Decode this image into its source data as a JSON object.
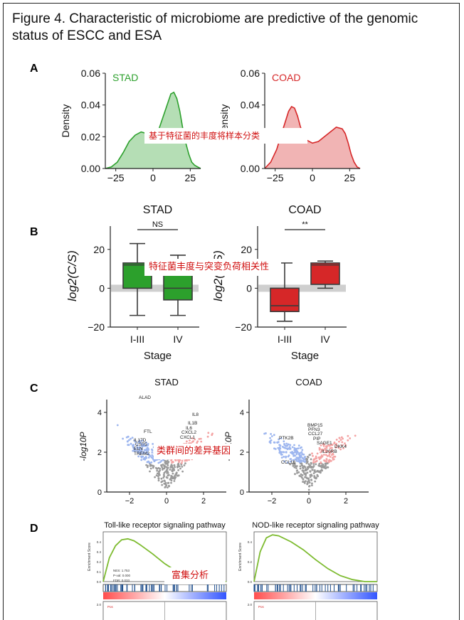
{
  "figure": {
    "title": "Figure 4.  Characteristic of microbiome are predictive of the genomic status of ESCC and ESA",
    "panel_letters": [
      "A",
      "B",
      "C",
      "D"
    ]
  },
  "overlays": {
    "A": "基于特征菌的丰度将样本分类",
    "B": "特征菌丰度与突变负荷相关性",
    "C": "类群间的差异基因",
    "D": "富集分析"
  },
  "colors": {
    "stad_green": "#2ca02c",
    "coad_red": "#d62728",
    "gsea_curve": "#7dbb2f",
    "volcano_up": "#f4a3a3",
    "volcano_down": "#9db6ef",
    "volcano_ns": "#9a9a9a"
  },
  "chart_data": [
    {
      "type": "area",
      "panel": "A",
      "title": "STAD",
      "ylabel": "Density",
      "x": [
        -32,
        -28,
        -24,
        -20,
        -16,
        -12,
        -8,
        -4,
        0,
        4,
        8,
        12,
        14,
        16,
        18,
        20,
        22,
        24,
        26,
        28,
        30,
        32
      ],
      "y": [
        0.0,
        0.001,
        0.004,
        0.01,
        0.017,
        0.021,
        0.023,
        0.022,
        0.021,
        0.025,
        0.036,
        0.047,
        0.048,
        0.044,
        0.036,
        0.025,
        0.016,
        0.009,
        0.004,
        0.002,
        0.001,
        0.0
      ],
      "xticks": [
        "-25",
        "0",
        "25"
      ],
      "yticks": [
        "0.00",
        "0.02",
        "0.04",
        "0.06"
      ],
      "xlim": [
        -32,
        32
      ],
      "ylim": [
        0,
        0.06
      ]
    },
    {
      "type": "area",
      "panel": "A",
      "title": "COAD",
      "ylabel": "Density",
      "x": [
        -32,
        -28,
        -24,
        -20,
        -16,
        -14,
        -12,
        -10,
        -8,
        -4,
        0,
        4,
        8,
        12,
        16,
        20,
        22,
        24,
        26,
        28,
        30,
        32
      ],
      "y": [
        0.0,
        0.004,
        0.012,
        0.024,
        0.036,
        0.039,
        0.038,
        0.033,
        0.026,
        0.018,
        0.016,
        0.017,
        0.02,
        0.023,
        0.026,
        0.025,
        0.022,
        0.016,
        0.009,
        0.004,
        0.001,
        0.0
      ],
      "xticks": [
        "-25",
        "0",
        "25"
      ],
      "yticks": [
        "0.00",
        "0.02",
        "0.04",
        "0.06"
      ],
      "xlim": [
        -32,
        32
      ],
      "ylim": [
        0,
        0.06
      ]
    },
    {
      "type": "box",
      "panel": "B",
      "title": "STAD",
      "xlabel": "Stage",
      "ylabel": "log2(C/S)",
      "significance": "NS",
      "categories": [
        "I-III",
        "IV"
      ],
      "boxes": [
        {
          "min": -14,
          "q1": 0,
          "median": 12,
          "q3": 13,
          "max": 23
        },
        {
          "min": -14,
          "q1": -6,
          "median": 0,
          "q3": 12,
          "max": 17
        }
      ],
      "yticks": [
        "20",
        "0",
        "-20"
      ],
      "ylim": [
        -20,
        32
      ]
    },
    {
      "type": "box",
      "panel": "B",
      "title": "COAD",
      "xlabel": "Stage",
      "ylabel": "log2(C/S)",
      "significance": "**",
      "categories": [
        "I-III",
        "IV"
      ],
      "boxes": [
        {
          "min": -17,
          "q1": -12,
          "median": -9,
          "q3": 0,
          "max": 13
        },
        {
          "min": 0,
          "q1": 2,
          "median": 12,
          "q3": 13,
          "max": 14
        }
      ],
      "yticks": [
        "20",
        "0",
        "-20"
      ],
      "ylim": [
        -20,
        32
      ]
    },
    {
      "type": "scatter",
      "panel": "C",
      "title": "STAD",
      "ylabel": "-log10P",
      "xticks": [
        "-2",
        "0",
        "2"
      ],
      "yticks": [
        "4",
        "2",
        "0"
      ],
      "labels": [
        "ALAD",
        "IL8",
        "IL1B",
        "IL6",
        "CXCL2",
        "CXCL1",
        "FTL",
        "IL17D",
        "CST5",
        "ELN",
        "TREM2"
      ]
    },
    {
      "type": "scatter",
      "panel": "C",
      "title": "COAD",
      "ylabel": "-log10P",
      "xticks": [
        "-2",
        "0",
        "2"
      ],
      "yticks": [
        "4",
        "2",
        "0"
      ],
      "labels": [
        "BMP15",
        "PFN3",
        "CCL27",
        "PIP",
        "SAGE1",
        "DKK4",
        "IL20RB",
        "PTK2B",
        "CCL16"
      ]
    },
    {
      "type": "line",
      "panel": "D",
      "title": "Toll-like receptor signaling pathway",
      "ylabel": "Enrichment Score",
      "stats": [
        "NES: 1.753",
        "P-val: 0.000",
        "FDR: 0.033"
      ],
      "bottom_label": "Pos",
      "bottom_value": "2.0",
      "yticks": [
        "0.4",
        "0.3",
        "0.2",
        "0.1",
        "0.0"
      ],
      "x": [
        0,
        0.05,
        0.1,
        0.15,
        0.2,
        0.25,
        0.3,
        0.4,
        0.5,
        0.6,
        0.7,
        0.8,
        0.9,
        1.0
      ],
      "y": [
        0.0,
        0.24,
        0.36,
        0.42,
        0.43,
        0.41,
        0.37,
        0.28,
        0.18,
        0.1,
        0.04,
        0.01,
        0.0,
        0.0
      ]
    },
    {
      "type": "line",
      "panel": "D",
      "title": "NOD-like receptor signaling pathway",
      "ylabel": "Enrichment Score",
      "bottom_label": "Pos",
      "bottom_value": "2.0",
      "yticks": [
        "0.4",
        "0.2",
        "0.0"
      ],
      "x": [
        0,
        0.05,
        0.1,
        0.15,
        0.2,
        0.3,
        0.4,
        0.5,
        0.6,
        0.7,
        0.8,
        0.9,
        1.0
      ],
      "y": [
        0.0,
        0.3,
        0.44,
        0.47,
        0.46,
        0.4,
        0.32,
        0.22,
        0.13,
        0.06,
        0.02,
        0.0,
        0.0
      ]
    }
  ]
}
